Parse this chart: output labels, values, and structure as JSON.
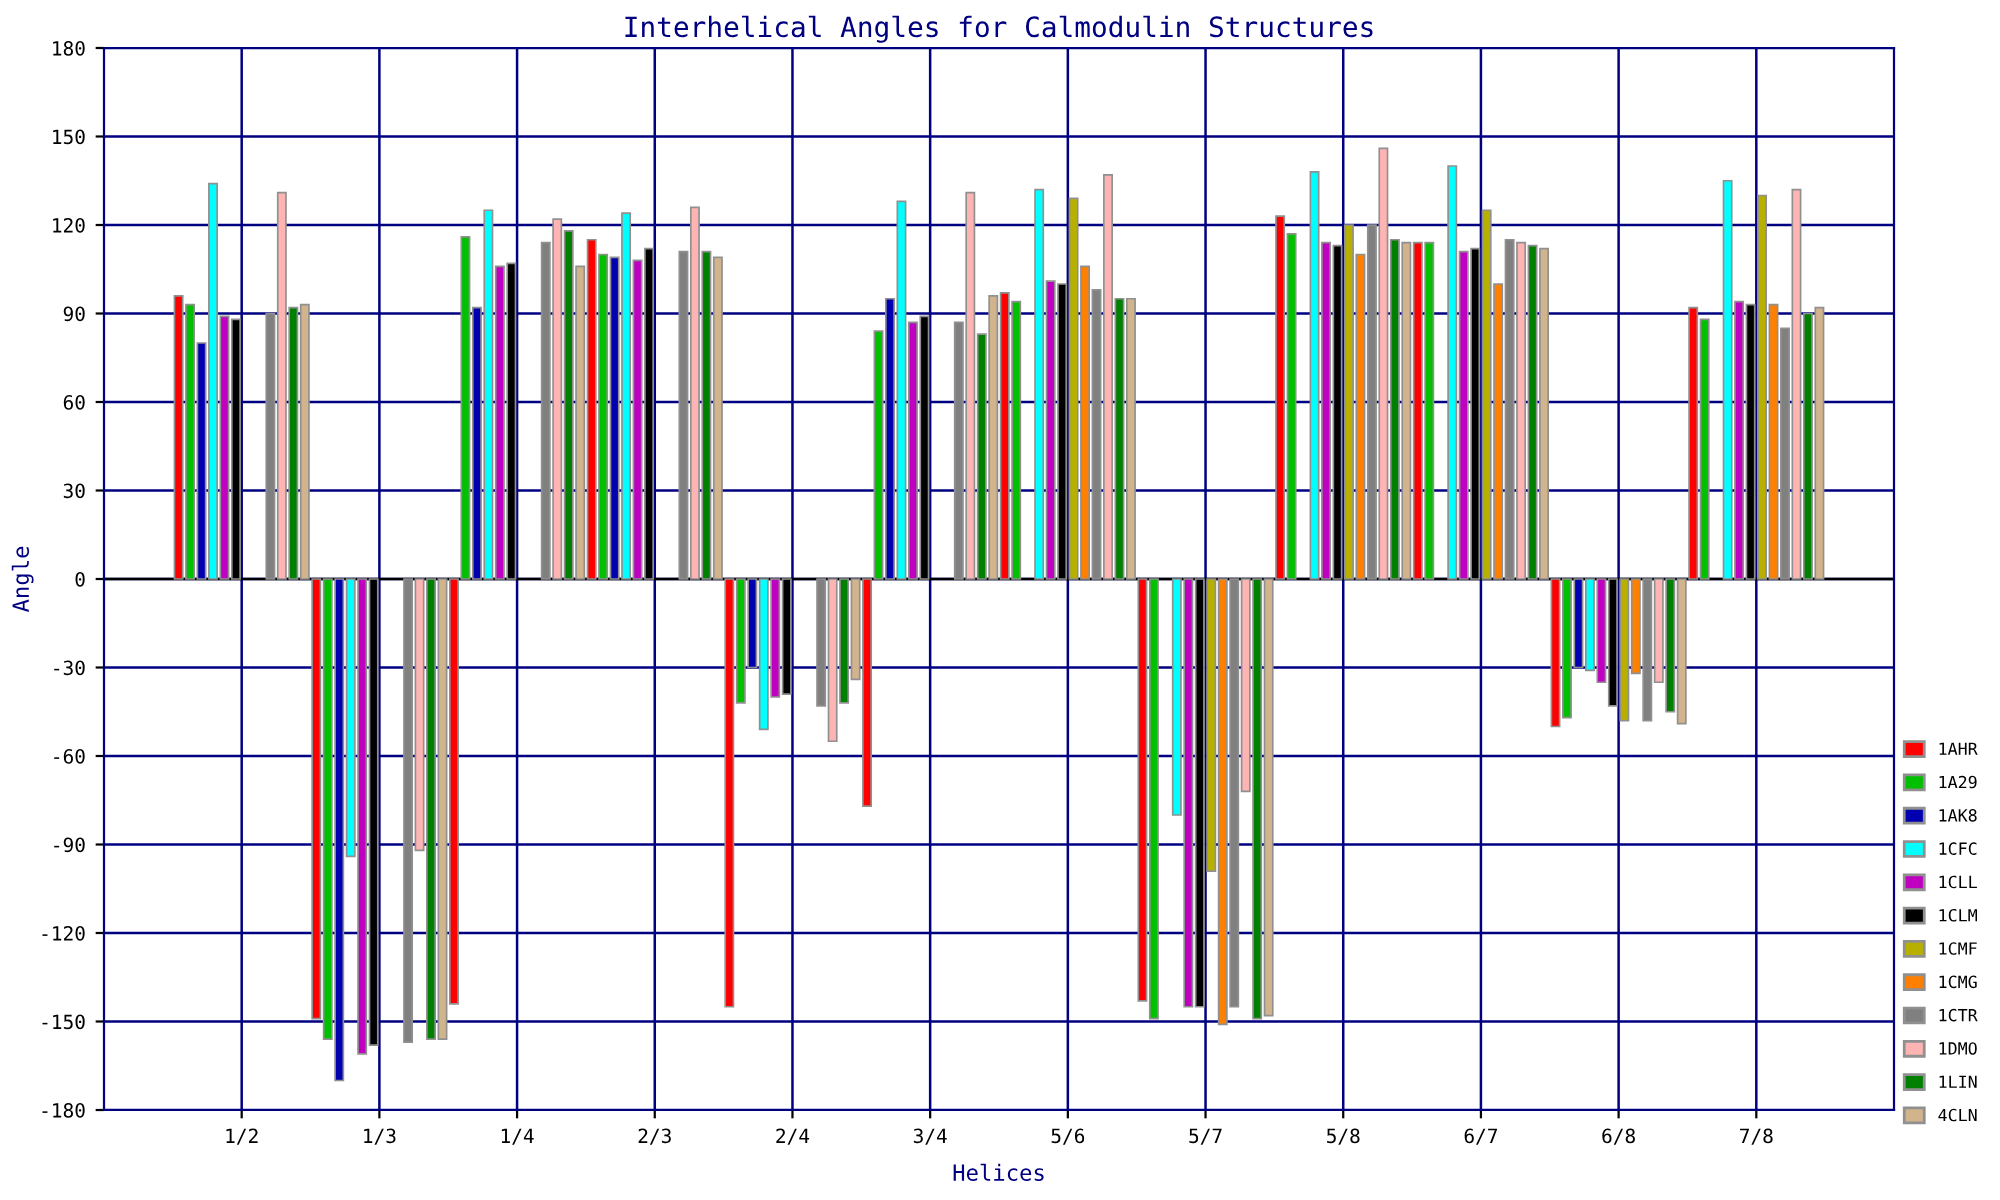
{
  "chart_data": {
    "type": "bar",
    "title": "Interhelical Angles for Calmodulin Structures",
    "xlabel": "Helices",
    "ylabel": "Angle",
    "categories": [
      "1/2",
      "1/3",
      "1/4",
      "2/3",
      "2/4",
      "3/4",
      "5/6",
      "5/7",
      "5/8",
      "6/7",
      "6/8",
      "7/8"
    ],
    "ylim": [
      -180,
      180
    ],
    "yticks": [
      -180,
      -150,
      -120,
      -90,
      -60,
      -30,
      0,
      30,
      60,
      90,
      120,
      150,
      180
    ],
    "grid": true,
    "legend": "right",
    "series": [
      {
        "name": "1AHR",
        "color": "#ff0000",
        "values": [
          96,
          -149,
          -144,
          115,
          -145,
          -77,
          97,
          -143,
          123,
          114,
          -50,
          92
        ]
      },
      {
        "name": "1A29",
        "color": "#00c000",
        "values": [
          93,
          -156,
          116,
          110,
          -42,
          84,
          94,
          -149,
          117,
          114,
          -47,
          88
        ]
      },
      {
        "name": "1AK8",
        "color": "#0000b0",
        "values": [
          80,
          -170,
          92,
          109,
          -30,
          95,
          null,
          null,
          null,
          null,
          -30,
          null
        ]
      },
      {
        "name": "1CFC",
        "color": "#00ffff",
        "values": [
          134,
          -94,
          125,
          124,
          -51,
          128,
          132,
          -80,
          138,
          140,
          -31,
          135
        ]
      },
      {
        "name": "1CLL",
        "color": "#c000c0",
        "values": [
          89,
          -161,
          106,
          108,
          -40,
          87,
          101,
          -145,
          114,
          111,
          -35,
          94
        ]
      },
      {
        "name": "1CLM",
        "color": "#000000",
        "values": [
          88,
          -158,
          107,
          112,
          -39,
          89,
          100,
          -145,
          113,
          112,
          -43,
          93
        ]
      },
      {
        "name": "1CMF",
        "color": "#b8b000",
        "values": [
          null,
          null,
          null,
          null,
          null,
          null,
          129,
          -99,
          120,
          125,
          -48,
          130
        ]
      },
      {
        "name": "1CMG",
        "color": "#ff8000",
        "values": [
          null,
          null,
          null,
          null,
          null,
          null,
          106,
          -151,
          110,
          100,
          -32,
          93
        ]
      },
      {
        "name": "1CTR",
        "color": "#808080",
        "values": [
          90,
          -157,
          114,
          111,
          -43,
          87,
          98,
          -145,
          120,
          115,
          -48,
          85
        ]
      },
      {
        "name": "1DMO",
        "color": "#ffb4b4",
        "values": [
          131,
          -92,
          122,
          126,
          -55,
          131,
          137,
          -72,
          146,
          114,
          -35,
          132
        ]
      },
      {
        "name": "1LIN",
        "color": "#008000",
        "values": [
          92,
          -156,
          118,
          111,
          -42,
          83,
          95,
          -149,
          115,
          113,
          -45,
          90
        ]
      },
      {
        "name": "4CLN",
        "color": "#d2b48c",
        "values": [
          93,
          -156,
          106,
          109,
          -34,
          96,
          95,
          -148,
          114,
          112,
          -49,
          92
        ]
      }
    ]
  }
}
